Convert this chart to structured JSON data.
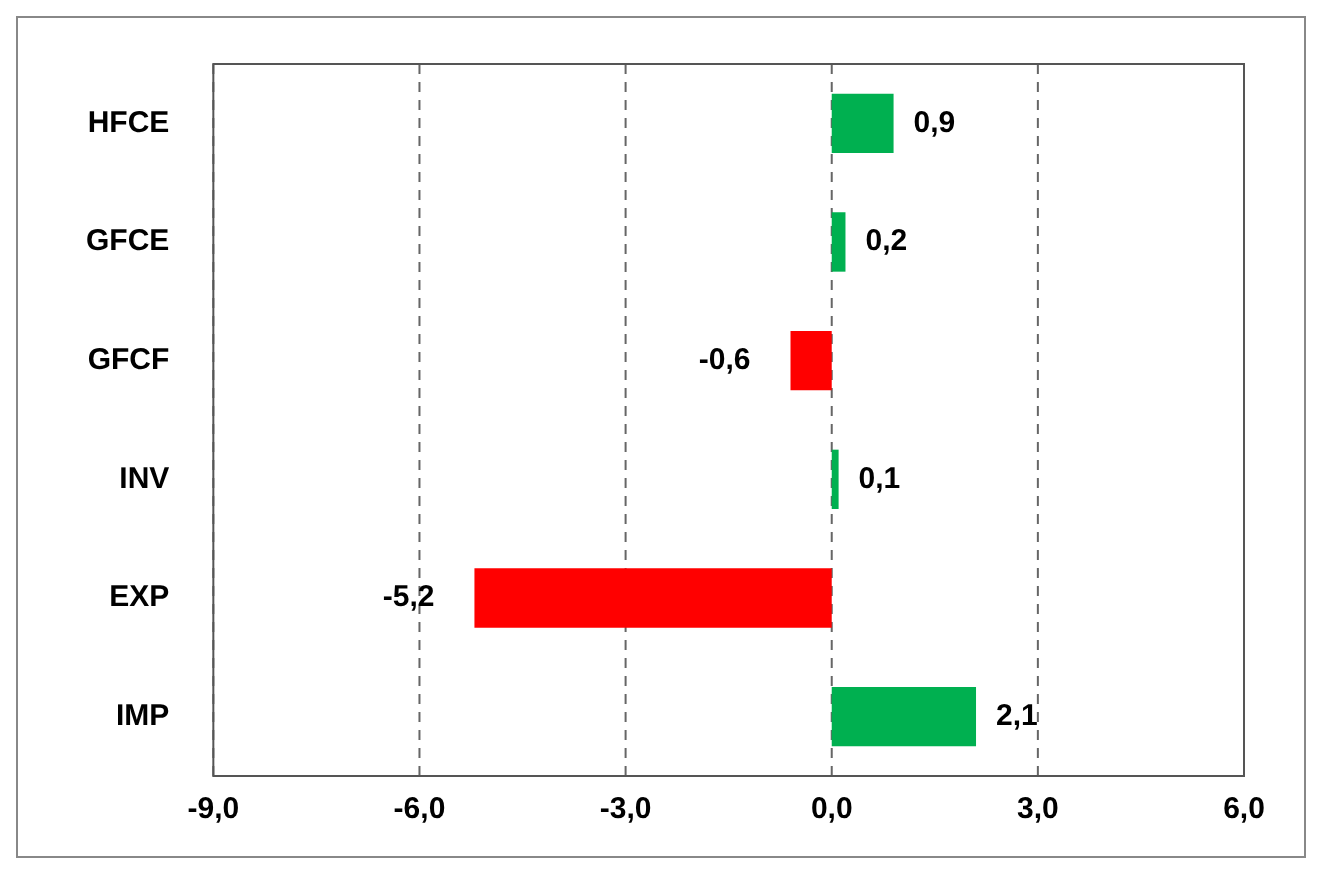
{
  "chart_data": {
    "type": "bar",
    "orientation": "horizontal",
    "categories": [
      "HFCE",
      "GFCE",
      "GFCF",
      "INV",
      "EXP",
      "IMP"
    ],
    "values": [
      0.9,
      0.2,
      -0.6,
      0.1,
      -5.2,
      2.1
    ],
    "colors": [
      "#00b050",
      "#00b050",
      "#ff0000",
      "#00b050",
      "#ff0000",
      "#00b050"
    ],
    "value_labels": [
      "0,9",
      "0,2",
      "-0,6",
      "0,1",
      "-5,2",
      "2,1"
    ],
    "xlim": [
      -9,
      6
    ],
    "xticks": [
      {
        "value": -9,
        "label": "-9,0"
      },
      {
        "value": -6,
        "label": "-6,0"
      },
      {
        "value": -3,
        "label": "-3,0"
      },
      {
        "value": 0,
        "label": "0,0"
      },
      {
        "value": 3,
        "label": "3,0"
      },
      {
        "value": 6,
        "label": "6,0"
      }
    ],
    "grid": "x",
    "legend": false
  }
}
